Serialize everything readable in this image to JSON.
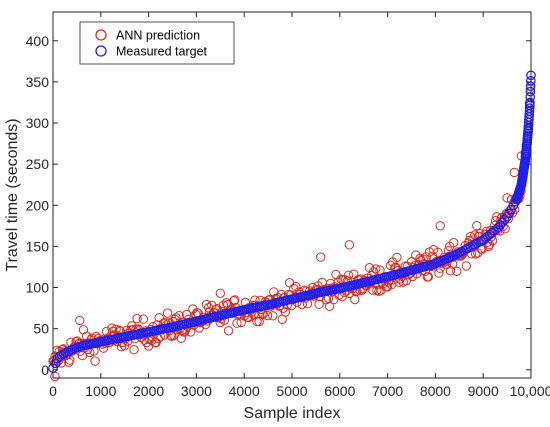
{
  "chart_data": {
    "type": "scatter",
    "title": "",
    "xlabel": "Sample index",
    "ylabel": "Travel time (seconds)",
    "xlim": [
      0,
      10000
    ],
    "ylim": [
      -10,
      435
    ],
    "x_ticks": [
      0,
      1000,
      2000,
      3000,
      4000,
      5000,
      6000,
      7000,
      8000,
      9000,
      10000
    ],
    "x_tick_labels": [
      "0",
      "1000",
      "2000",
      "3000",
      "4000",
      "5000",
      "6000",
      "7000",
      "8000",
      "9000",
      "10,000"
    ],
    "y_ticks": [
      0,
      50,
      100,
      150,
      200,
      250,
      300,
      350,
      400
    ],
    "y_tick_labels": [
      "0",
      "50",
      "100",
      "150",
      "200",
      "250",
      "300",
      "350",
      "400"
    ],
    "grid": false,
    "legend_position": "top-left",
    "series": [
      {
        "name": "ANN prediction",
        "color": "#d62b1f",
        "marker": "open-circle",
        "spread": 12,
        "outliers": [
          [
            40,
            -8
          ],
          [
            560,
            60
          ],
          [
            2700,
            48
          ],
          [
            3500,
            93
          ],
          [
            5600,
            137
          ],
          [
            6200,
            152
          ],
          [
            8100,
            175
          ],
          [
            8300,
            150
          ],
          [
            9500,
            209
          ],
          [
            9650,
            240
          ],
          [
            9800,
            260
          ]
        ]
      },
      {
        "name": "Measured target",
        "color": "#1f1ff0",
        "marker": "open-circle",
        "curve": [
          [
            0,
            2
          ],
          [
            100,
            15
          ],
          [
            300,
            22
          ],
          [
            600,
            29
          ],
          [
            1000,
            34
          ],
          [
            1500,
            40
          ],
          [
            2000,
            46
          ],
          [
            2500,
            52
          ],
          [
            3000,
            59
          ],
          [
            3500,
            66
          ],
          [
            4000,
            73
          ],
          [
            4500,
            79
          ],
          [
            5000,
            86
          ],
          [
            5500,
            93
          ],
          [
            6000,
            99
          ],
          [
            6500,
            106
          ],
          [
            7000,
            113
          ],
          [
            7500,
            121
          ],
          [
            8000,
            129
          ],
          [
            8500,
            142
          ],
          [
            9000,
            158
          ],
          [
            9300,
            172
          ],
          [
            9500,
            186
          ],
          [
            9700,
            207
          ],
          [
            9800,
            225
          ],
          [
            9880,
            255
          ],
          [
            9940,
            290
          ],
          [
            9980,
            325
          ],
          [
            10000,
            358
          ]
        ]
      }
    ]
  }
}
